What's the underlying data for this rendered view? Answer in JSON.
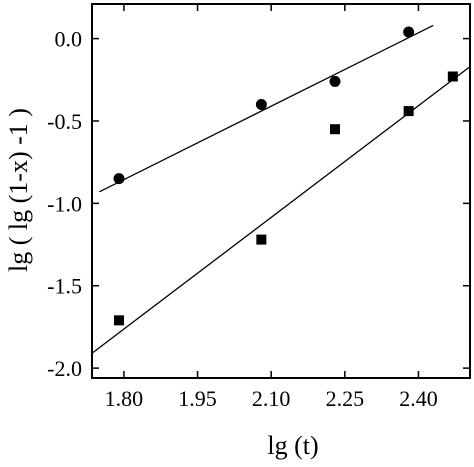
{
  "chart_data": {
    "type": "scatter",
    "title": "",
    "xlabel": "lg (t)",
    "ylabel": "lg ( lg (1-x) -1  )",
    "xlim": [
      1.735,
      2.505
    ],
    "ylim": [
      -2.06,
      0.21
    ],
    "x_ticks": [
      1.8,
      1.95,
      2.1,
      2.25,
      2.4
    ],
    "x_tick_labels": [
      "1.80",
      "1.95",
      "2.10",
      "2.25",
      "2.40"
    ],
    "y_ticks": [
      0.0,
      -0.5,
      -1.0,
      -1.5,
      -2.0
    ],
    "y_tick_labels": [
      "0.0",
      "-0.5",
      "-1.0",
      "-1.5",
      "-2.0"
    ],
    "grid": false,
    "legend": "none",
    "series": [
      {
        "marker": "circle",
        "color": "#000000",
        "points": [
          [
            1.79,
            -0.85
          ],
          [
            2.08,
            -0.4
          ],
          [
            2.23,
            -0.26
          ],
          [
            2.38,
            0.04
          ]
        ],
        "fit": {
          "x": [
            1.75,
            2.43
          ],
          "y": [
            -0.93,
            0.08
          ]
        }
      },
      {
        "marker": "square",
        "color": "#000000",
        "points": [
          [
            1.79,
            -1.71
          ],
          [
            2.08,
            -1.22
          ],
          [
            2.23,
            -0.55
          ],
          [
            2.38,
            -0.44
          ],
          [
            2.47,
            -0.23
          ]
        ],
        "fit": {
          "x": [
            1.735,
            2.505
          ],
          "y": [
            -1.91,
            -0.17
          ]
        }
      }
    ]
  }
}
